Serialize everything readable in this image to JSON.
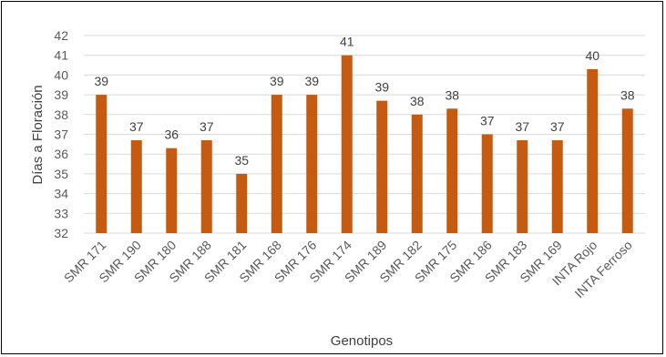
{
  "chart_data": {
    "type": "bar",
    "categories": [
      "SMR 171",
      "SMR 190",
      "SMR 180",
      "SMR 188",
      "SMR 181",
      "SMR 168",
      "SMR 176",
      "SMR 174",
      "SMR 189",
      "SMR 182",
      "SMR 175",
      "SMR 186",
      "SMR 183",
      "SMR 169",
      "INTA Rojo",
      "INTA Ferroso"
    ],
    "values": [
      39.0,
      36.7,
      36.3,
      36.7,
      35.0,
      39.0,
      39.0,
      41.0,
      38.7,
      38.0,
      38.3,
      37.0,
      36.7,
      36.7,
      40.3,
      38.3
    ],
    "data_labels": [
      "39",
      "37",
      "36",
      "37",
      "35",
      "39",
      "39",
      "41",
      "39",
      "38",
      "38",
      "37",
      "37",
      "37",
      "40",
      "38"
    ],
    "title": "",
    "xlabel": "Genotipos",
    "ylabel": "Días a Floración",
    "ylim": [
      32,
      42
    ],
    "yticks": [
      32,
      33,
      34,
      35,
      36,
      37,
      38,
      39,
      40,
      41,
      42
    ],
    "grid": true,
    "legend": "none",
    "bar_color": "#c55a11",
    "grid_color": "#d9d9d9"
  }
}
